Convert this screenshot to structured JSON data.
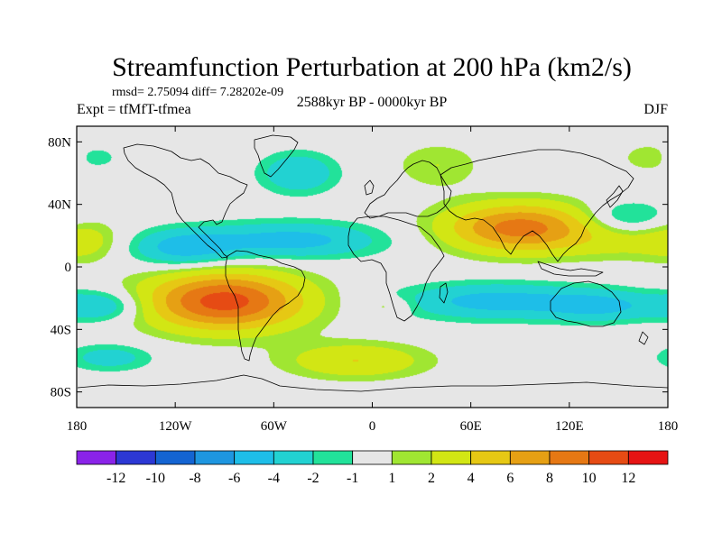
{
  "chart_data": {
    "type": "heatmap",
    "title": "Streamfunction Perturbation at 200 hPa (km2/s)",
    "stats_text": "rmsd= 2.75094 diff= 7.28202e-09",
    "left_subtitle": "Expt = tfMfT-tfmea",
    "center_subtitle": "2588kyr BP - 0000kyr BP",
    "right_subtitle": "DJF",
    "x_axis": {
      "range": [
        -180,
        180
      ],
      "ticks": [
        {
          "value": -180,
          "label": "180"
        },
        {
          "value": -120,
          "label": "120W"
        },
        {
          "value": -60,
          "label": "60W"
        },
        {
          "value": 0,
          "label": "0"
        },
        {
          "value": 60,
          "label": "60E"
        },
        {
          "value": 120,
          "label": "120E"
        },
        {
          "value": 180,
          "label": "180"
        }
      ]
    },
    "y_axis": {
      "range": [
        -90,
        90
      ],
      "ticks": [
        {
          "value": 80,
          "label": "80N"
        },
        {
          "value": 40,
          "label": "40N"
        },
        {
          "value": 0,
          "label": "0"
        },
        {
          "value": -40,
          "label": "40S"
        },
        {
          "value": -80,
          "label": "80S"
        }
      ]
    },
    "colorbar": {
      "colors": [
        "#8a23e8",
        "#2c38d4",
        "#1464d2",
        "#1e96e0",
        "#1ebee8",
        "#22d2d2",
        "#22e29a",
        "#e6e6e6",
        "#a0e632",
        "#d2e614",
        "#e6c814",
        "#e6a014",
        "#e67814",
        "#e64b14",
        "#e61414"
      ],
      "labels": [
        "-12",
        "-10",
        "-8",
        "-6",
        "-4",
        "-2",
        "-1",
        "1",
        "2",
        "4",
        "6",
        "8",
        "10",
        "12"
      ]
    },
    "field_anomalies": [
      {
        "name": "south-america-high",
        "lon": -90,
        "lat": -22,
        "value": 11,
        "sx": 34,
        "sy": 13
      },
      {
        "name": "south-asia-high",
        "lon": 90,
        "lat": 25,
        "value": 9,
        "sx": 32,
        "sy": 11
      },
      {
        "name": "north-atlantic-low",
        "lon": -50,
        "lat": 17,
        "value": -5,
        "sx": 38,
        "sy": 8
      },
      {
        "name": "northeast-pacific-low",
        "lon": -115,
        "lat": 12,
        "value": -5,
        "sx": 22,
        "sy": 8
      },
      {
        "name": "indian-ocean-low",
        "lon": 75,
        "lat": -22,
        "value": -5,
        "sx": 40,
        "sy": 8
      },
      {
        "name": "australia-low",
        "lon": 140,
        "lat": -25,
        "value": -4,
        "sx": 24,
        "sy": 7
      },
      {
        "name": "southwest-pacific-low",
        "lon": -165,
        "lat": -25,
        "value": -4,
        "sx": 18,
        "sy": 7
      },
      {
        "name": "southern-ocean-high",
        "lon": -10,
        "lat": -60,
        "value": 4,
        "sx": 30,
        "sy": 8
      },
      {
        "name": "south-pacific-low",
        "lon": -160,
        "lat": -58,
        "value": -3,
        "sx": 18,
        "sy": 6
      },
      {
        "name": "greenland-low",
        "lon": -45,
        "lat": 60,
        "value": -4,
        "sx": 16,
        "sy": 9
      },
      {
        "name": "siberia-high",
        "lon": 40,
        "lat": 65,
        "value": 2,
        "sx": 18,
        "sy": 10
      },
      {
        "name": "north-pacific-low",
        "lon": 155,
        "lat": 32,
        "value": -3,
        "sx": 18,
        "sy": 7
      },
      {
        "name": "central-pacific-high",
        "lon": 160,
        "lat": 15,
        "value": 2,
        "sx": 30,
        "sy": 8
      },
      {
        "name": "eastern-pacific-high",
        "lon": -175,
        "lat": 18,
        "value": 2,
        "sx": 14,
        "sy": 10
      },
      {
        "name": "south-atlantic-high",
        "lon": 10,
        "lat": -25,
        "value": 2,
        "sx": 10,
        "sy": 4
      },
      {
        "name": "arctic-high",
        "lon": -170,
        "lat": 70,
        "value": -2,
        "sx": 10,
        "sy": 5
      },
      {
        "name": "beringia-high",
        "lon": 170,
        "lat": 70,
        "value": 2,
        "sx": 12,
        "sy": 6
      }
    ]
  }
}
